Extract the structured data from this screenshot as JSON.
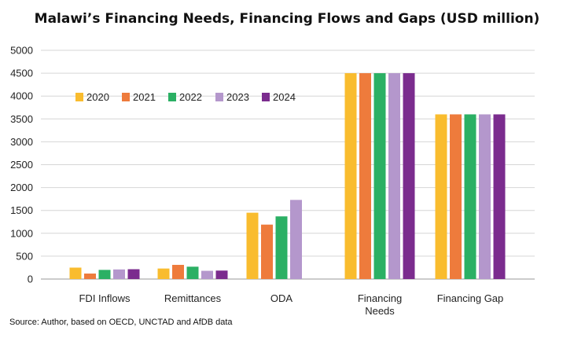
{
  "chart_data": {
    "type": "bar",
    "title": "Malawi’s Financing Needs, Financing Flows and Gaps (USD million)",
    "source": "Source: Author, based on OECD, UNCTAD and AfDB data",
    "categories": [
      [
        "FDI Inflows"
      ],
      [
        "Remittances"
      ],
      [
        "ODA"
      ],
      [
        "Financing",
        "Needs"
      ],
      [
        "Financing Gap"
      ]
    ],
    "ylim": [
      0,
      5000
    ],
    "yticks": [
      0,
      500,
      1000,
      1500,
      2000,
      2500,
      3000,
      3500,
      4000,
      4500,
      5000
    ],
    "grid": true,
    "legend_position": "top-left",
    "series": [
      {
        "name": "2020",
        "color": "#F9BC2E",
        "values": [
          250,
          230,
          1450,
          4500,
          3600
        ]
      },
      {
        "name": "2021",
        "color": "#EE7B3C",
        "values": [
          120,
          310,
          1190,
          4500,
          3600
        ]
      },
      {
        "name": "2022",
        "color": "#2BB064",
        "values": [
          200,
          270,
          1370,
          4500,
          3600
        ]
      },
      {
        "name": "2023",
        "color": "#B497CC",
        "values": [
          210,
          180,
          1730,
          4500,
          3600
        ]
      },
      {
        "name": "2024",
        "color": "#7B2C8E",
        "values": [
          215,
          185,
          null,
          4500,
          3600
        ]
      }
    ]
  }
}
